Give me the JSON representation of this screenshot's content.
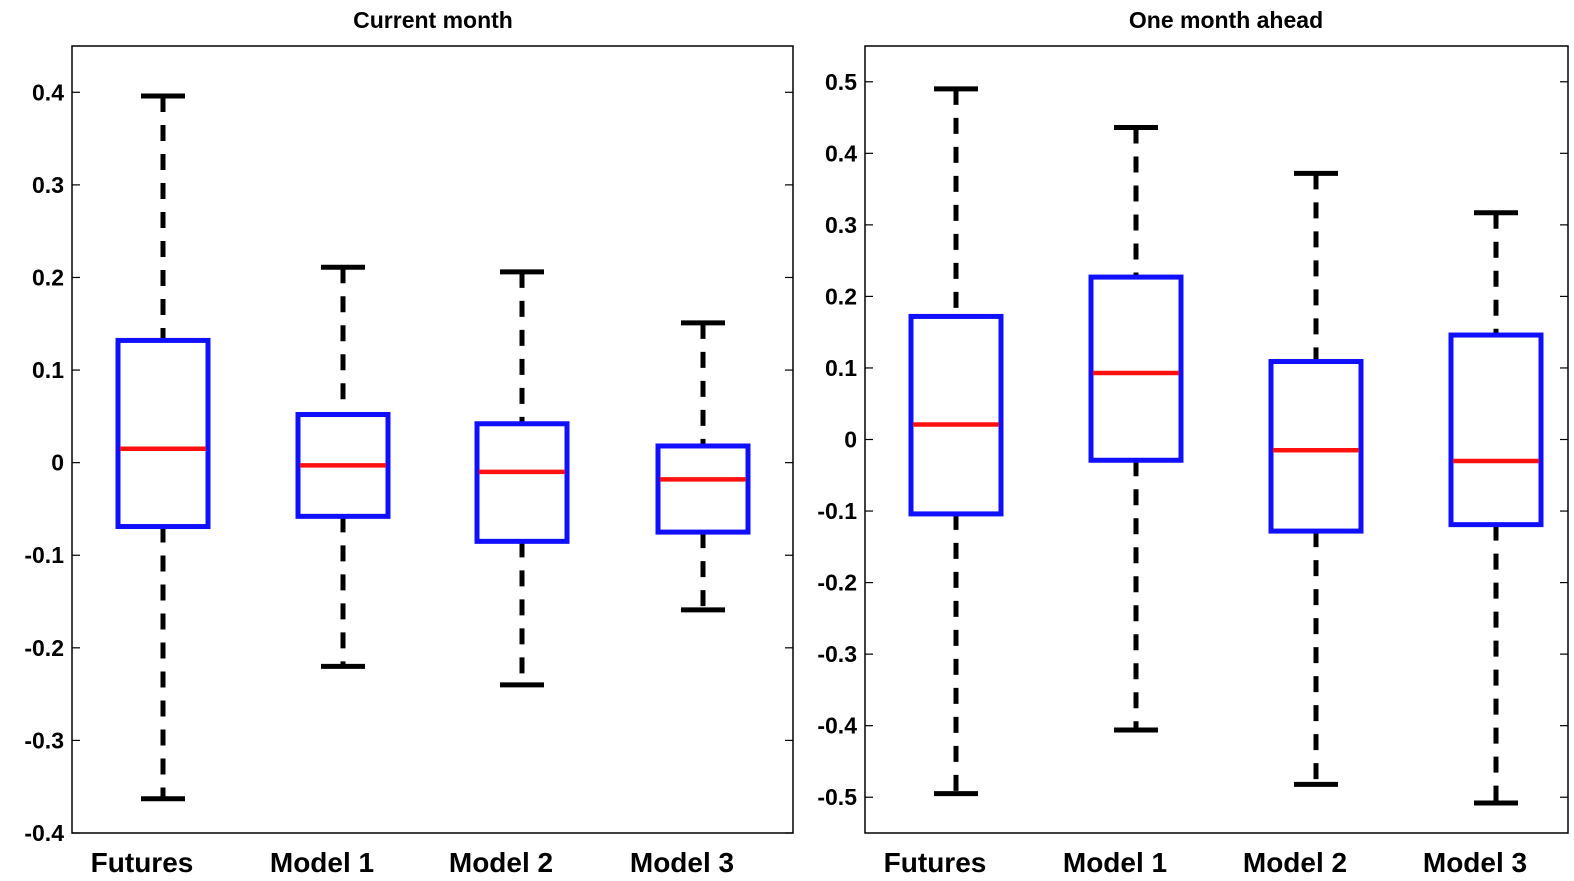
{
  "colors": {
    "box": "#1010ff",
    "median": "#ff1010",
    "whisker": "#000000",
    "axes": "#000000"
  },
  "chart_data": [
    {
      "type": "box",
      "title": "Current month",
      "categories": [
        "Futures",
        "Model 1",
        "Model 2",
        "Model 3"
      ],
      "ylim": [
        -0.4,
        0.45
      ],
      "yticks": [
        0.4,
        0.3,
        0.2,
        0.1,
        0,
        -0.1,
        -0.2,
        -0.3,
        -0.4
      ],
      "ytick_labels": [
        "0.4",
        "0.3",
        "0.2",
        "0.1",
        "0",
        "-0.1",
        "-0.2",
        "-0.3",
        "-0.4"
      ],
      "boxes": [
        {
          "min": -0.363,
          "q1": -0.069,
          "median": 0.015,
          "q3": 0.132,
          "max": 0.396
        },
        {
          "min": -0.22,
          "q1": -0.058,
          "median": -0.003,
          "q3": 0.052,
          "max": 0.211
        },
        {
          "min": -0.24,
          "q1": -0.085,
          "median": -0.01,
          "q3": 0.042,
          "max": 0.206
        },
        {
          "min": -0.159,
          "q1": -0.075,
          "median": -0.018,
          "q3": 0.018,
          "max": 0.151
        }
      ]
    },
    {
      "type": "box",
      "title": "One month ahead",
      "categories": [
        "Futures",
        "Model 1",
        "Model 2",
        "Model 3"
      ],
      "ylim": [
        -0.55,
        0.55
      ],
      "yticks": [
        0.5,
        0.4,
        0.3,
        0.2,
        0.1,
        0,
        -0.1,
        -0.2,
        -0.3,
        -0.4,
        -0.5
      ],
      "ytick_labels": [
        "0.5",
        "0.4",
        "0.3",
        "0.2",
        "0.1",
        "0",
        "-0.1",
        "-0.2",
        "-0.3",
        "-0.4",
        "-0.5"
      ],
      "boxes": [
        {
          "min": -0.495,
          "q1": -0.104,
          "median": 0.021,
          "q3": 0.172,
          "max": 0.49
        },
        {
          "min": -0.406,
          "q1": -0.029,
          "median": 0.093,
          "q3": 0.227,
          "max": 0.436
        },
        {
          "min": -0.482,
          "q1": -0.128,
          "median": -0.015,
          "q3": 0.109,
          "max": 0.372
        },
        {
          "min": -0.508,
          "q1": -0.119,
          "median": -0.03,
          "q3": 0.146,
          "max": 0.317
        }
      ]
    }
  ]
}
